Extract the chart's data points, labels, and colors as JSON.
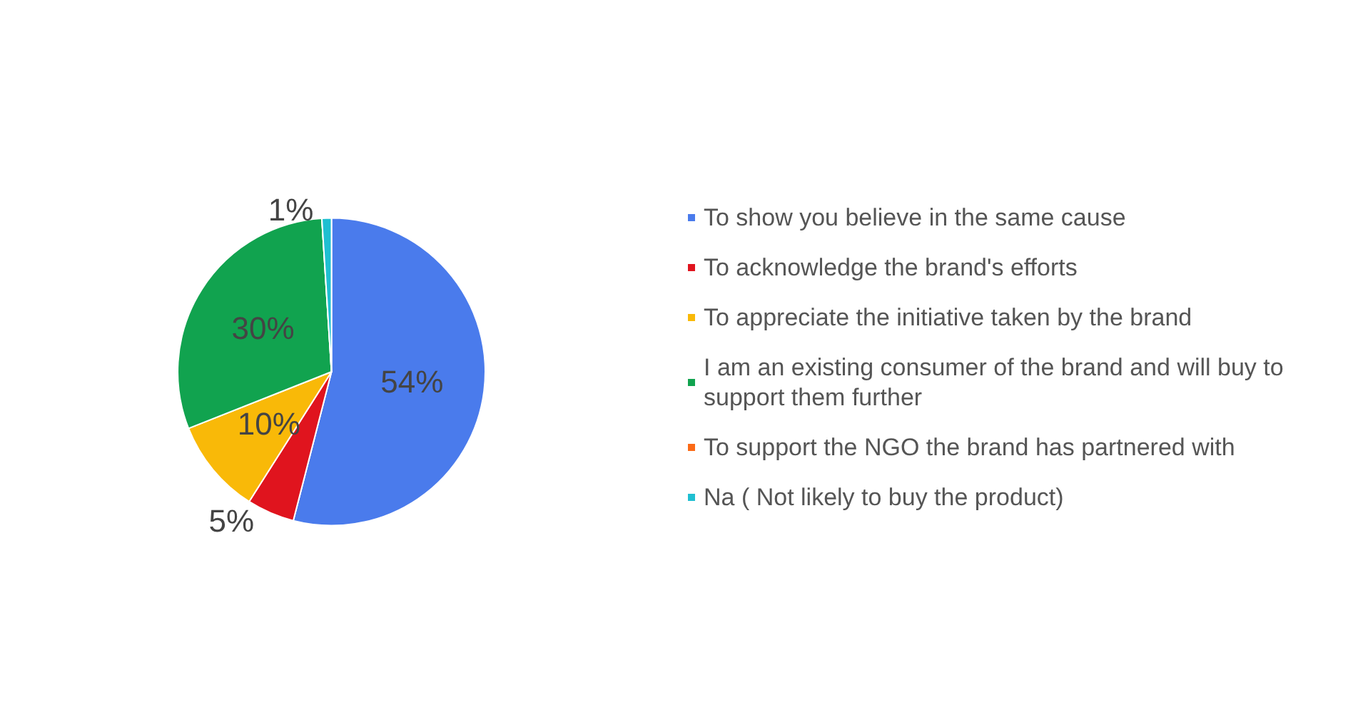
{
  "chart_data": {
    "type": "pie",
    "categories": [
      "To show you believe in the same cause",
      "To acknowledge the brand's efforts",
      "To appreciate the initiative taken by the brand",
      "I am an existing consumer of the brand and will buy to support them further",
      "To support the NGO the brand has partnered with",
      "Na ( Not likely to buy the product)"
    ],
    "values": [
      54,
      5,
      10,
      30,
      0,
      1
    ],
    "value_labels": [
      "54%",
      "5%",
      "10%",
      "30%",
      null,
      "1%"
    ],
    "colors": [
      "#4a7bec",
      "#e0141e",
      "#f9b908",
      "#11a34f",
      "#fb6a16",
      "#1fbfd1"
    ],
    "legend": "right"
  }
}
